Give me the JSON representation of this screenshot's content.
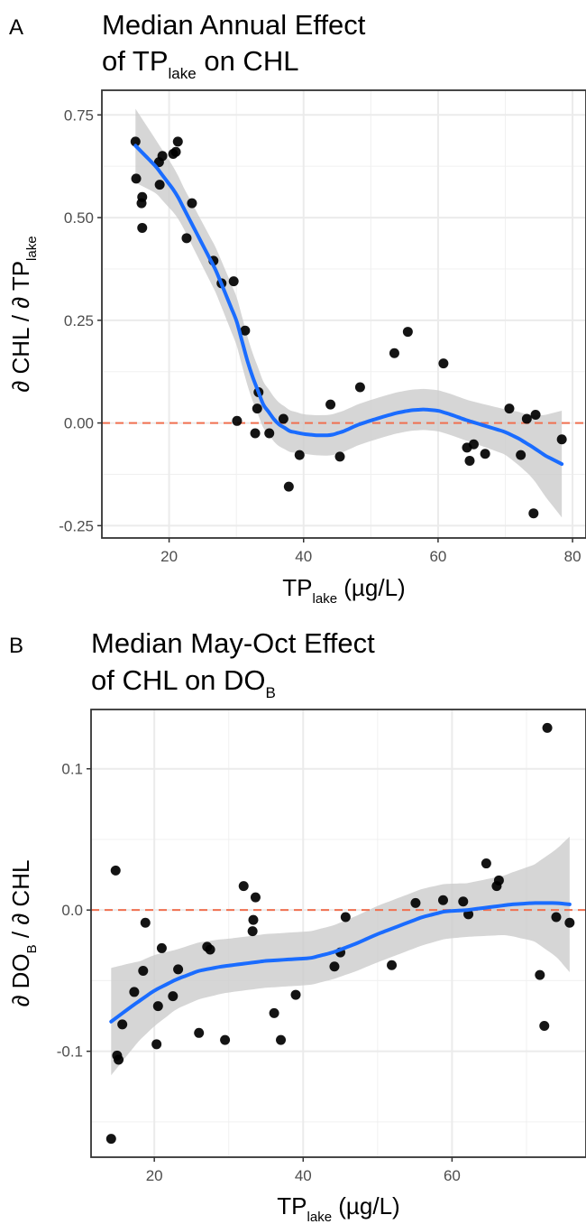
{
  "chart_data": [
    {
      "panel": "A",
      "type": "scatter",
      "title_lines": [
        [
          "Median Annual Effect"
        ],
        [
          "of TP",
          "lake",
          " on CHL"
        ]
      ],
      "xlabel": [
        "TP",
        "lake",
        " (µg/L)"
      ],
      "ylabel": [
        "∂ CHL / ∂ TP",
        "lake"
      ],
      "xlim": [
        10,
        82
      ],
      "ylim": [
        -0.28,
        0.81
      ],
      "xticks": [
        20,
        40,
        60,
        80
      ],
      "yticks": [
        -0.25,
        0.0,
        0.25,
        0.5,
        0.75
      ],
      "ytick_labels": [
        "-0.25",
        "0.00",
        "0.25",
        "0.50",
        "0.75"
      ],
      "reference_line": 0,
      "colors": {
        "points": "#000000",
        "smooth": "#1a6cff",
        "band": "#cccccc",
        "reference": "#f07050"
      },
      "points": [
        [
          15.0,
          0.685
        ],
        [
          15.1,
          0.595
        ],
        [
          15.9,
          0.535
        ],
        [
          16.0,
          0.55
        ],
        [
          16.0,
          0.475
        ],
        [
          18.5,
          0.635
        ],
        [
          18.6,
          0.58
        ],
        [
          19.0,
          0.65
        ],
        [
          20.6,
          0.655
        ],
        [
          21.0,
          0.66
        ],
        [
          21.3,
          0.685
        ],
        [
          22.6,
          0.45
        ],
        [
          23.4,
          0.535
        ],
        [
          26.6,
          0.395
        ],
        [
          27.8,
          0.34
        ],
        [
          29.6,
          0.345
        ],
        [
          30.1,
          0.005
        ],
        [
          31.3,
          0.225
        ],
        [
          32.8,
          -0.025
        ],
        [
          33.1,
          0.035
        ],
        [
          33.3,
          0.075
        ],
        [
          34.9,
          -0.025
        ],
        [
          37.0,
          0.01
        ],
        [
          37.8,
          -0.155
        ],
        [
          39.4,
          -0.078
        ],
        [
          44.0,
          0.045
        ],
        [
          45.4,
          -0.082
        ],
        [
          48.4,
          0.087
        ],
        [
          53.5,
          0.17
        ],
        [
          55.5,
          0.222
        ],
        [
          60.8,
          0.145
        ],
        [
          64.3,
          -0.06
        ],
        [
          64.7,
          -0.092
        ],
        [
          65.3,
          -0.052
        ],
        [
          67.0,
          -0.075
        ],
        [
          70.6,
          0.035
        ],
        [
          72.3,
          -0.078
        ],
        [
          73.2,
          0.01
        ],
        [
          74.2,
          -0.22
        ],
        [
          74.5,
          0.02
        ],
        [
          78.4,
          -0.04
        ]
      ],
      "smooth": [
        [
          15.0,
          0.675
        ],
        [
          18.0,
          0.625
        ],
        [
          21.0,
          0.56
        ],
        [
          24.0,
          0.465
        ],
        [
          27.0,
          0.37
        ],
        [
          30.0,
          0.25
        ],
        [
          32.0,
          0.13
        ],
        [
          34.0,
          0.045
        ],
        [
          36.0,
          0.0
        ],
        [
          38.0,
          -0.02
        ],
        [
          40.0,
          -0.027
        ],
        [
          42.0,
          -0.03
        ],
        [
          44.0,
          -0.03
        ],
        [
          46.0,
          -0.02
        ],
        [
          48.0,
          -0.005
        ],
        [
          50.0,
          0.006
        ],
        [
          52.0,
          0.016
        ],
        [
          54.0,
          0.025
        ],
        [
          56.0,
          0.031
        ],
        [
          58.0,
          0.033
        ],
        [
          60.0,
          0.03
        ],
        [
          62.0,
          0.02
        ],
        [
          64.0,
          0.008
        ],
        [
          66.0,
          -0.002
        ],
        [
          68.0,
          -0.012
        ],
        [
          70.0,
          -0.022
        ],
        [
          72.0,
          -0.038
        ],
        [
          74.0,
          -0.058
        ],
        [
          76.0,
          -0.08
        ],
        [
          78.4,
          -0.1
        ]
      ],
      "band_half_width": [
        [
          15.0,
          0.09
        ],
        [
          18.0,
          0.065
        ],
        [
          22.0,
          0.05
        ],
        [
          27.0,
          0.055
        ],
        [
          31.0,
          0.06
        ],
        [
          35.0,
          0.055
        ],
        [
          40.0,
          0.048
        ],
        [
          45.0,
          0.05
        ],
        [
          50.0,
          0.05
        ],
        [
          55.0,
          0.05
        ],
        [
          60.0,
          0.05
        ],
        [
          65.0,
          0.05
        ],
        [
          70.0,
          0.055
        ],
        [
          74.0,
          0.075
        ],
        [
          78.4,
          0.13
        ]
      ]
    },
    {
      "panel": "B",
      "type": "scatter",
      "title_lines": [
        [
          "Median May-Oct Effect"
        ],
        [
          "of CHL on DO",
          "B"
        ]
      ],
      "xlabel": [
        "TP",
        "lake",
        " (µg/L)"
      ],
      "ylabel": [
        "∂ DO",
        "B",
        " / ∂ CHL"
      ],
      "xlim": [
        11.5,
        78.0
      ],
      "ylim": [
        -0.175,
        0.142
      ],
      "xticks": [
        20,
        40,
        60
      ],
      "yticks": [
        -0.1,
        0.0,
        0.1
      ],
      "ytick_labels": [
        "-0.1",
        "0.0",
        "0.1"
      ],
      "reference_line": 0,
      "colors": {
        "points": "#000000",
        "smooth": "#1a6cff",
        "band": "#cccccc",
        "reference": "#f07050"
      },
      "points": [
        [
          14.2,
          -0.162
        ],
        [
          14.8,
          0.028
        ],
        [
          15.0,
          -0.103
        ],
        [
          15.2,
          -0.106
        ],
        [
          15.7,
          -0.081
        ],
        [
          17.3,
          -0.058
        ],
        [
          18.5,
          -0.043
        ],
        [
          18.8,
          -0.009
        ],
        [
          20.3,
          -0.095
        ],
        [
          20.5,
          -0.068
        ],
        [
          21.0,
          -0.027
        ],
        [
          22.5,
          -0.061
        ],
        [
          23.2,
          -0.042
        ],
        [
          26.0,
          -0.087
        ],
        [
          27.1,
          -0.026
        ],
        [
          27.5,
          -0.028
        ],
        [
          29.5,
          -0.092
        ],
        [
          32.0,
          0.017
        ],
        [
          33.2,
          -0.015
        ],
        [
          33.3,
          -0.007
        ],
        [
          33.6,
          0.009
        ],
        [
          36.1,
          -0.073
        ],
        [
          37.0,
          -0.092
        ],
        [
          39.0,
          -0.06
        ],
        [
          44.2,
          -0.04
        ],
        [
          45.0,
          -0.03
        ],
        [
          45.7,
          -0.005
        ],
        [
          51.9,
          -0.039
        ],
        [
          55.1,
          0.005
        ],
        [
          58.8,
          0.007
        ],
        [
          61.5,
          0.006
        ],
        [
          62.2,
          -0.003
        ],
        [
          64.6,
          0.033
        ],
        [
          66.0,
          0.017
        ],
        [
          66.3,
          0.021
        ],
        [
          71.8,
          -0.046
        ],
        [
          72.4,
          -0.082
        ],
        [
          72.8,
          0.129
        ],
        [
          74.0,
          -0.005
        ],
        [
          75.8,
          -0.009
        ]
      ],
      "smooth": [
        [
          14.2,
          -0.079
        ],
        [
          17.0,
          -0.068
        ],
        [
          20.0,
          -0.057
        ],
        [
          23.0,
          -0.049
        ],
        [
          26.0,
          -0.043
        ],
        [
          29.0,
          -0.04
        ],
        [
          32.0,
          -0.038
        ],
        [
          35.0,
          -0.036
        ],
        [
          38.0,
          -0.035
        ],
        [
          41.0,
          -0.034
        ],
        [
          44.0,
          -0.03
        ],
        [
          47.0,
          -0.024
        ],
        [
          50.0,
          -0.017
        ],
        [
          53.0,
          -0.011
        ],
        [
          56.0,
          -0.005
        ],
        [
          59.0,
          -0.001
        ],
        [
          62.0,
          0.0
        ],
        [
          65.0,
          0.002
        ],
        [
          68.0,
          0.004
        ],
        [
          71.0,
          0.005
        ],
        [
          74.0,
          0.005
        ],
        [
          75.8,
          0.004
        ]
      ],
      "band_half_width": [
        [
          14.2,
          0.038
        ],
        [
          18.0,
          0.028
        ],
        [
          23.0,
          0.021
        ],
        [
          30.0,
          0.019
        ],
        [
          37.0,
          0.019
        ],
        [
          44.0,
          0.019
        ],
        [
          50.0,
          0.02
        ],
        [
          56.0,
          0.02
        ],
        [
          62.0,
          0.019
        ],
        [
          67.0,
          0.021
        ],
        [
          71.0,
          0.027
        ],
        [
          74.0,
          0.038
        ],
        [
          75.8,
          0.048
        ]
      ]
    }
  ]
}
